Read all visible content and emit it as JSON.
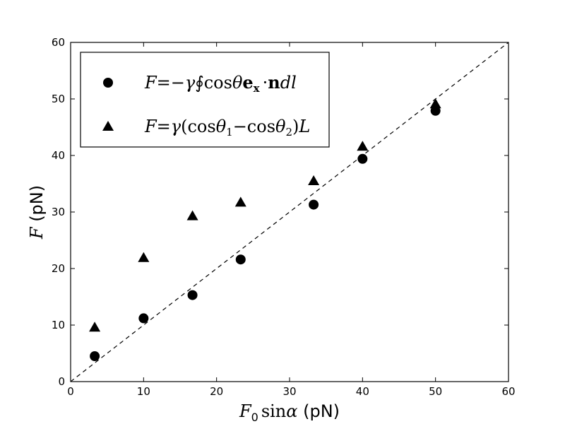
{
  "chart_data": {
    "type": "scatter",
    "xlim": [
      0,
      60
    ],
    "ylim": [
      0,
      60
    ],
    "x_ticks": [
      0,
      10,
      20,
      30,
      40,
      50,
      60
    ],
    "y_ticks": [
      0,
      10,
      20,
      30,
      40,
      50,
      60
    ],
    "x_tick_labels": [
      "0",
      "10",
      "20",
      "30",
      "40",
      "50",
      "60"
    ],
    "y_tick_labels": [
      "0",
      "10",
      "20",
      "30",
      "40",
      "50",
      "60"
    ],
    "xlabel": "F0 sinα (pN)",
    "ylabel": "F (pN)",
    "grid": false,
    "legend_position": "top-left",
    "reference_line": {
      "style": "dashed",
      "x": [
        0,
        60
      ],
      "y": [
        0,
        60
      ]
    },
    "series": [
      {
        "name": "F=−γ∮cosθ e_x · n dl",
        "marker": "circle",
        "color": "#000000",
        "x": [
          3.3,
          10.0,
          16.7,
          23.3,
          33.3,
          40.0,
          50.0
        ],
        "y": [
          4.5,
          11.2,
          15.3,
          21.6,
          31.3,
          39.4,
          47.9
        ]
      },
      {
        "name": "F=γ(cosθ1−cosθ2)L",
        "marker": "triangle",
        "color": "#000000",
        "x": [
          3.3,
          10.0,
          16.7,
          23.3,
          33.3,
          40.0,
          50.0
        ],
        "y": [
          9.6,
          21.9,
          29.3,
          31.7,
          35.5,
          41.6,
          49.1
        ]
      }
    ]
  }
}
